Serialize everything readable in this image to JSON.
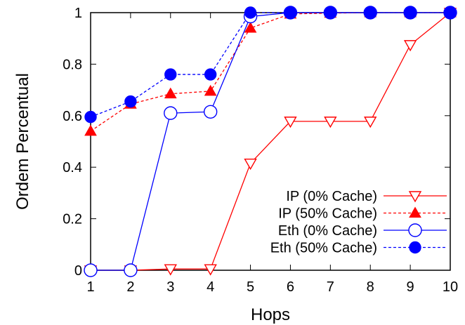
{
  "chart_data": {
    "type": "line",
    "xlabel": "Hops",
    "ylabel": "Ordem Percentual",
    "x": [
      1,
      2,
      3,
      4,
      5,
      6,
      7,
      8,
      9,
      10
    ],
    "xlim": [
      1,
      10
    ],
    "ylim": [
      0,
      1
    ],
    "xticks": [
      "1",
      "2",
      "3",
      "4",
      "5",
      "6",
      "7",
      "8",
      "9",
      "10"
    ],
    "yticks": [
      "0",
      "0.2",
      "0.4",
      "0.6",
      "0.8",
      "1"
    ],
    "grid": false,
    "legend_position": "bottom-right",
    "series": [
      {
        "name": "IP (0% Cache)",
        "color": "#ff0000",
        "line": "solid",
        "marker": "triangle-down-open",
        "values": [
          0,
          0,
          0.005,
          0.005,
          0.415,
          0.578,
          0.578,
          0.578,
          0.875,
          1.0
        ]
      },
      {
        "name": "IP (50% Cache)",
        "color": "#ff0000",
        "line": "dashed",
        "marker": "triangle-up-filled",
        "values": [
          0.54,
          0.645,
          0.685,
          0.695,
          0.94,
          0.995,
          0.998,
          1.0,
          1.0,
          1.0
        ]
      },
      {
        "name": "Eth (0% Cache)",
        "color": "#0000ff",
        "line": "solid",
        "marker": "circle-open",
        "values": [
          0,
          0,
          0.61,
          0.615,
          0.985,
          1.0,
          1.0,
          1.0,
          1.0,
          1.0
        ]
      },
      {
        "name": "Eth (50% Cache)",
        "color": "#0000ff",
        "line": "dashed",
        "marker": "circle-filled",
        "values": [
          0.595,
          0.655,
          0.76,
          0.76,
          1.0,
          1.0,
          1.0,
          1.0,
          1.0,
          1.0
        ]
      }
    ]
  }
}
